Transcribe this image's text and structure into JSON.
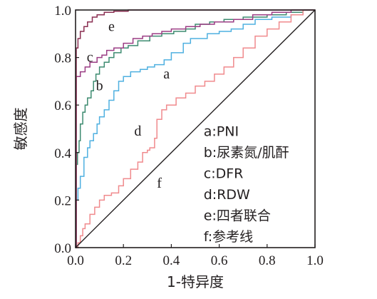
{
  "chart_data": {
    "type": "line",
    "xlabel": "1-特异度",
    "ylabel": "敏感度",
    "xlim": [
      0,
      1
    ],
    "ylim": [
      0,
      1
    ],
    "x_ticks": [
      "0.0",
      "0.2",
      "0.4",
      "0.6",
      "0.8",
      "1.0"
    ],
    "y_ticks": [
      "0.0",
      "0.2",
      "0.4",
      "0.6",
      "0.8",
      "1.0"
    ],
    "grid": false,
    "legend_position": "bottom-right",
    "legend": [
      "a:PNI",
      "b:尿素氮/肌酐",
      "c:DFR",
      "d:RDW",
      "e:四者联合",
      "f:参考线"
    ],
    "series": [
      {
        "label": "a",
        "color": "#4fb0e0",
        "label_at": [
          0.38,
          0.73
        ],
        "x": [
          0,
          0.003,
          0.003,
          0.01,
          0.01,
          0.02,
          0.02,
          0.035,
          0.035,
          0.05,
          0.05,
          0.06,
          0.06,
          0.075,
          0.075,
          0.09,
          0.09,
          0.1,
          0.1,
          0.12,
          0.12,
          0.14,
          0.14,
          0.16,
          0.16,
          0.18,
          0.18,
          0.2,
          0.2,
          0.23,
          0.23,
          0.27,
          0.27,
          0.3,
          0.3,
          0.33,
          0.33,
          0.37,
          0.37,
          0.4,
          0.4,
          0.45,
          0.45,
          0.48,
          0.48,
          0.55,
          0.55,
          0.6,
          0.6,
          0.65,
          0.65,
          0.7,
          0.7,
          0.75,
          0.75,
          0.82,
          0.82,
          0.9,
          0.9,
          0.95,
          0.95,
          1
        ],
        "y": [
          0,
          0,
          0.2,
          0.2,
          0.25,
          0.25,
          0.3,
          0.3,
          0.38,
          0.38,
          0.42,
          0.42,
          0.45,
          0.45,
          0.48,
          0.48,
          0.52,
          0.52,
          0.55,
          0.55,
          0.58,
          0.58,
          0.62,
          0.62,
          0.66,
          0.66,
          0.7,
          0.7,
          0.72,
          0.72,
          0.74,
          0.74,
          0.75,
          0.75,
          0.76,
          0.76,
          0.77,
          0.77,
          0.79,
          0.79,
          0.82,
          0.82,
          0.86,
          0.86,
          0.88,
          0.88,
          0.9,
          0.9,
          0.91,
          0.91,
          0.92,
          0.92,
          0.94,
          0.94,
          0.96,
          0.96,
          0.97,
          0.97,
          0.98,
          0.98,
          1,
          1
        ]
      },
      {
        "label": "b",
        "color": "#3d8b70",
        "label_at": [
          0.1,
          0.68
        ],
        "x": [
          0,
          0.003,
          0.003,
          0.008,
          0.008,
          0.015,
          0.015,
          0.02,
          0.02,
          0.03,
          0.03,
          0.04,
          0.04,
          0.05,
          0.05,
          0.065,
          0.065,
          0.075,
          0.075,
          0.085,
          0.085,
          0.1,
          0.1,
          0.12,
          0.12,
          0.14,
          0.14,
          0.16,
          0.16,
          0.19,
          0.19,
          0.22,
          0.22,
          0.26,
          0.26,
          0.31,
          0.31,
          0.36,
          0.36,
          0.41,
          0.41,
          0.46,
          0.46,
          0.5,
          0.5,
          0.56,
          0.56,
          0.62,
          0.62,
          0.7,
          0.7,
          0.8,
          0.8,
          0.88,
          0.88,
          0.95,
          0.95,
          1
        ],
        "y": [
          0,
          0,
          0.35,
          0.35,
          0.4,
          0.4,
          0.45,
          0.45,
          0.52,
          0.52,
          0.57,
          0.57,
          0.6,
          0.6,
          0.63,
          0.63,
          0.66,
          0.66,
          0.7,
          0.7,
          0.73,
          0.73,
          0.76,
          0.76,
          0.78,
          0.78,
          0.8,
          0.8,
          0.82,
          0.82,
          0.84,
          0.84,
          0.85,
          0.85,
          0.87,
          0.87,
          0.89,
          0.89,
          0.9,
          0.9,
          0.91,
          0.91,
          0.92,
          0.92,
          0.94,
          0.94,
          0.95,
          0.95,
          0.96,
          0.96,
          0.97,
          0.97,
          0.98,
          0.98,
          0.99,
          0.99,
          1,
          1
        ]
      },
      {
        "label": "c",
        "color": "#9b3d84",
        "label_at": [
          0.06,
          0.8
        ],
        "x": [
          0,
          0.003,
          0.003,
          0.02,
          0.02,
          0.04,
          0.04,
          0.06,
          0.06,
          0.09,
          0.09,
          0.11,
          0.11,
          0.13,
          0.13,
          0.16,
          0.16,
          0.2,
          0.2,
          0.24,
          0.24,
          0.28,
          0.28,
          0.32,
          0.32,
          0.36,
          0.36,
          0.4,
          0.4,
          0.46,
          0.46,
          0.52,
          0.52,
          0.58,
          0.58,
          0.66,
          0.66,
          0.74,
          0.74,
          0.82,
          0.82,
          0.9,
          0.9,
          1
        ],
        "y": [
          0,
          0,
          0.72,
          0.72,
          0.74,
          0.74,
          0.76,
          0.76,
          0.78,
          0.78,
          0.8,
          0.8,
          0.81,
          0.81,
          0.83,
          0.83,
          0.84,
          0.84,
          0.86,
          0.86,
          0.88,
          0.88,
          0.89,
          0.89,
          0.9,
          0.9,
          0.91,
          0.91,
          0.92,
          0.92,
          0.93,
          0.93,
          0.94,
          0.94,
          0.95,
          0.95,
          0.96,
          0.96,
          0.98,
          0.98,
          0.99,
          0.99,
          1,
          1
        ]
      },
      {
        "label": "d",
        "color": "#f08a8d",
        "label_at": [
          0.26,
          0.49
        ],
        "x": [
          0,
          0.01,
          0.01,
          0.02,
          0.02,
          0.03,
          0.03,
          0.04,
          0.04,
          0.06,
          0.06,
          0.08,
          0.08,
          0.1,
          0.1,
          0.12,
          0.12,
          0.15,
          0.15,
          0.18,
          0.18,
          0.2,
          0.2,
          0.23,
          0.23,
          0.26,
          0.26,
          0.28,
          0.28,
          0.3,
          0.3,
          0.31,
          0.31,
          0.33,
          0.33,
          0.34,
          0.34,
          0.36,
          0.36,
          0.38,
          0.38,
          0.42,
          0.42,
          0.46,
          0.46,
          0.5,
          0.5,
          0.54,
          0.54,
          0.58,
          0.58,
          0.62,
          0.62,
          0.66,
          0.66,
          0.7,
          0.7,
          0.75,
          0.75,
          0.8,
          0.8,
          0.85,
          0.85,
          0.9,
          0.9,
          0.95,
          0.95,
          1
        ],
        "y": [
          0,
          0,
          0.02,
          0.02,
          0.05,
          0.05,
          0.08,
          0.08,
          0.1,
          0.1,
          0.14,
          0.14,
          0.17,
          0.17,
          0.2,
          0.2,
          0.22,
          0.22,
          0.23,
          0.23,
          0.26,
          0.26,
          0.29,
          0.29,
          0.33,
          0.33,
          0.36,
          0.36,
          0.4,
          0.4,
          0.41,
          0.41,
          0.42,
          0.42,
          0.46,
          0.46,
          0.54,
          0.54,
          0.58,
          0.58,
          0.6,
          0.6,
          0.63,
          0.63,
          0.65,
          0.65,
          0.68,
          0.68,
          0.7,
          0.7,
          0.73,
          0.73,
          0.76,
          0.76,
          0.8,
          0.8,
          0.84,
          0.84,
          0.89,
          0.89,
          0.92,
          0.92,
          0.95,
          0.95,
          0.98,
          0.98,
          1,
          1
        ]
      },
      {
        "label": "e",
        "color": "#8a2f52",
        "label_at": [
          0.15,
          0.93
        ],
        "x": [
          0,
          0.003,
          0.003,
          0.01,
          0.01,
          0.02,
          0.02,
          0.035,
          0.035,
          0.05,
          0.05,
          0.07,
          0.07,
          0.09,
          0.09,
          0.12,
          0.12,
          0.16,
          0.16,
          0.22,
          0.22,
          0.3,
          0.3,
          1
        ],
        "y": [
          0,
          0,
          0.84,
          0.84,
          0.88,
          0.88,
          0.91,
          0.91,
          0.93,
          0.93,
          0.95,
          0.95,
          0.97,
          0.97,
          0.98,
          0.98,
          0.99,
          0.99,
          0.995,
          0.995,
          1,
          1,
          1,
          1
        ]
      },
      {
        "label": "f",
        "color": "#231f20",
        "label_at": [
          0.35,
          0.27
        ],
        "x": [
          0,
          1
        ],
        "y": [
          0,
          1
        ]
      }
    ]
  }
}
